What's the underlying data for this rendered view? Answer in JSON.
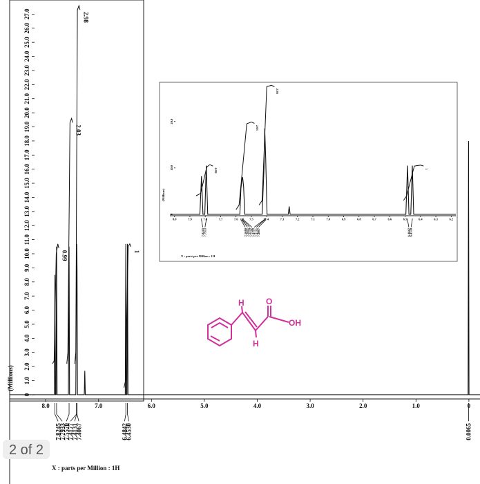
{
  "chart_data": [
    {
      "type": "line",
      "x_label": "X : parts per Million : 1H",
      "y_label": "(Millions)",
      "color": "#111111",
      "xlim": [
        8.68,
        -0.21
      ],
      "ylim": [
        -0.3,
        28
      ],
      "xticks": [
        {
          "value": 8,
          "label": "8.0"
        },
        {
          "value": 7,
          "label": "7.0"
        },
        {
          "value": 6,
          "label": "6.0"
        },
        {
          "value": 5,
          "label": "5.0"
        },
        {
          "value": 4,
          "label": "4.0"
        },
        {
          "value": 3,
          "label": "3.0"
        },
        {
          "value": 2,
          "label": "2.0"
        },
        {
          "value": 1,
          "label": "1.0"
        },
        0
      ],
      "yticks": [
        0,
        {
          "value": 1,
          "label": "1.0"
        },
        {
          "value": 2,
          "label": "2.0"
        },
        {
          "value": 3,
          "label": "3.0"
        },
        {
          "value": 4,
          "label": "4.0"
        },
        {
          "value": 5,
          "label": "5.0"
        },
        {
          "value": 6,
          "label": "6.0"
        },
        {
          "value": 7,
          "label": "7.0"
        },
        {
          "value": 8,
          "label": "8.0"
        },
        {
          "value": 9,
          "label": "9.0"
        },
        {
          "value": 10,
          "label": "10.0"
        },
        {
          "value": 11,
          "label": "11.0"
        },
        {
          "value": 12,
          "label": "12.0"
        },
        {
          "value": 13,
          "label": "13.0"
        },
        {
          "value": 14,
          "label": "14.0"
        },
        {
          "value": 15,
          "label": "15.0"
        },
        {
          "value": 16,
          "label": "16.0"
        },
        {
          "value": 17,
          "label": "17.0"
        },
        {
          "value": 18,
          "label": "18.0"
        },
        {
          "value": 19,
          "label": "19.0"
        },
        {
          "value": 20,
          "label": "20.0"
        },
        {
          "value": 21,
          "label": "21.0"
        },
        {
          "value": 22,
          "label": "22.0"
        },
        {
          "value": 23,
          "label": "23.0"
        },
        {
          "value": 24,
          "label": "24.0"
        },
        {
          "value": 25,
          "label": "25.0"
        },
        {
          "value": 26,
          "label": "26.0"
        },
        {
          "value": 27,
          "label": "27.0"
        }
      ],
      "x": [
        8.68,
        7.835,
        7.8245,
        7.815,
        7.803,
        7.7933,
        7.784,
        7.57,
        7.557,
        7.548,
        7.43,
        7.4177,
        7.4131,
        7.4067,
        7.398,
        7.27,
        7.26,
        7.25,
        6.495,
        6.4842,
        6.475,
        6.463,
        6.453,
        6.444,
        0.015,
        0.0065,
        -0.002,
        -0.21
      ],
      "values": [
        0,
        0,
        8.5,
        0,
        0,
        10.5,
        0,
        0,
        10.5,
        0,
        0,
        8,
        10.7,
        9,
        0,
        0,
        1.7,
        0,
        0,
        10.7,
        0,
        0,
        10.7,
        0,
        0,
        18,
        0,
        0
      ],
      "integrals": [
        {
          "value": 0.99,
          "x": [
            7.87,
            7.84,
            7.8,
            7.77,
            7.75
          ],
          "values": [
            2.2,
            2.4,
            10,
            10.7,
            10.4
          ]
        },
        {
          "value": 2.03,
          "x": [
            7.6,
            7.58,
            7.54,
            7.51,
            7.49
          ],
          "values": [
            2.2,
            3,
            19.3,
            19.6,
            19.3
          ]
        },
        {
          "value": 2.98,
          "x": [
            7.45,
            7.43,
            7.4,
            7.37,
            7.35
          ],
          "values": [
            2.2,
            3,
            27.3,
            27.6,
            27.3
          ]
        },
        {
          "value": 1,
          "x": [
            6.52,
            6.49,
            6.44,
            6.41,
            6.39
          ],
          "values": [
            0.5,
            1,
            10.5,
            10.7,
            10.5
          ]
        }
      ],
      "peak_labels": [
        7.8245,
        7.7933,
        {
          "value": 7.557,
          "label": "7.5570"
        },
        7.4177,
        7.4131,
        7.4067,
        6.4842,
        {
          "value": 6.453,
          "label": "6.4530"
        },
        0.0065
      ]
    },
    {
      "type": "line",
      "x_label": "X : parts per Million : 1H",
      "y_label": "(Millions)",
      "color": "#111111",
      "xlim": [
        8.03,
        6.17
      ],
      "ylim": [
        -0.3,
        28
      ],
      "xticks": [
        {
          "value": 8,
          "label": "8.0"
        },
        7.9,
        7.8,
        7.7,
        7.6,
        7.5,
        7.4,
        7.3,
        7.2,
        7.1,
        {
          "value": 7,
          "label": "7.0"
        },
        6.9,
        6.8,
        6.7,
        6.6,
        6.5,
        6.4,
        6.3,
        6.2
      ],
      "yticks": [
        0,
        {
          "value": 10,
          "label": "10.0"
        },
        {
          "value": 20,
          "label": "20.0"
        }
      ],
      "x": [
        8.03,
        7.835,
        7.8245,
        7.815,
        7.803,
        7.7933,
        7.784,
        7.575,
        7.568,
        7.5611,
        7.557,
        7.5506,
        7.543,
        7.43,
        7.4177,
        7.4131,
        7.4067,
        7.398,
        7.26,
        7.254,
        7.248,
        6.495,
        6.4842,
        6.475,
        6.463,
        6.453,
        6.444,
        6.17
      ],
      "values": [
        0,
        0,
        8.2,
        0,
        0,
        10.5,
        0,
        0,
        5.5,
        7.5,
        8,
        6,
        0,
        0,
        10,
        18.5,
        12,
        0,
        0,
        1.7,
        0,
        0,
        10.5,
        0,
        0,
        10.5,
        0,
        0
      ],
      "integrals": [
        {
          "value": 0.99,
          "x": [
            7.86,
            7.83,
            7.79,
            7.77,
            7.75
          ],
          "values": [
            4,
            4.5,
            10.2,
            10.7,
            10.4
          ]
        },
        {
          "value": 2.03,
          "x": [
            7.6,
            7.58,
            7.53,
            7.5,
            7.48
          ],
          "values": [
            1,
            2,
            19.5,
            19.9,
            19.6
          ]
        },
        {
          "value": 2.98,
          "x": [
            7.45,
            7.43,
            7.4,
            7.37,
            7.35
          ],
          "values": [
            2,
            3,
            27.5,
            27.8,
            27.5
          ]
        },
        {
          "value": 1,
          "x": [
            6.51,
            6.49,
            6.44,
            6.4,
            6.38
          ],
          "values": [
            3,
            4,
            10.4,
            10.6,
            10.4
          ]
        }
      ],
      "peak_labels": [
        7.8245,
        7.7933,
        {
          "value": 7.568,
          "label": "7.5680"
        },
        7.5611,
        {
          "value": 7.557,
          "label": "7.5570"
        },
        7.5506,
        7.4177,
        7.4131,
        7.4067,
        6.4842,
        {
          "value": 6.453,
          "label": "6.4530"
        }
      ]
    }
  ],
  "page_indicator": "2 of 2",
  "structure": {
    "labels": [
      "H",
      "O",
      "OH",
      "H"
    ]
  }
}
